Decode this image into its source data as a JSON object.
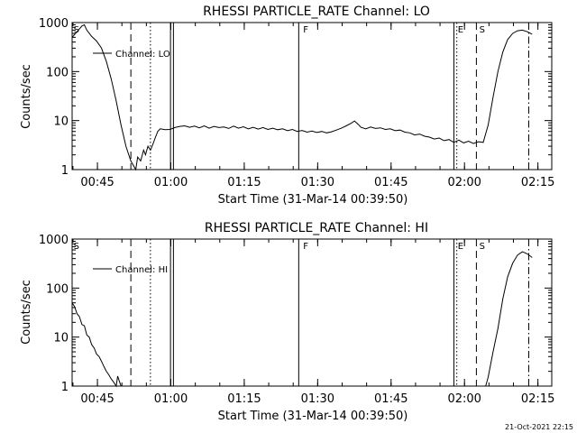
{
  "chart_data": [
    {
      "type": "line",
      "title": "RHESSI PARTICLE_RATE Channel: LO",
      "xlabel": "Start Time (31-Mar-14 00:39:50)",
      "ylabel": "Counts/sec",
      "y_scale": "log",
      "ylim": [
        1,
        1000
      ],
      "xlim_minutes": [
        0,
        98
      ],
      "x_tick_labels": [
        "00:45",
        "01:00",
        "01:15",
        "01:30",
        "01:45",
        "02:00",
        "02:15"
      ],
      "y_tick_labels": [
        "1",
        "10",
        "100",
        "1000"
      ],
      "legend_label": "Channel: LO",
      "event_labels": [
        {
          "label": "S",
          "minute": 0.3
        },
        {
          "label": "F",
          "minute": 47.2
        },
        {
          "label": "E",
          "minute": 78.8
        },
        {
          "label": "S",
          "minute": 83.2
        }
      ],
      "vertical_lines": [
        {
          "style": "dashed",
          "minute": 12.0
        },
        {
          "style": "dotted",
          "minute": 16.0
        },
        {
          "style": "solid",
          "minute": 20.1
        },
        {
          "style": "solid",
          "minute": 20.7
        },
        {
          "style": "solid",
          "minute": 46.3
        },
        {
          "style": "solid",
          "minute": 78.0
        },
        {
          "style": "dotted",
          "minute": 78.6
        },
        {
          "style": "dashed",
          "minute": 82.6
        },
        {
          "style": "dashdot",
          "minute": 93.3
        }
      ],
      "series": [
        {
          "label": "Channel: LO",
          "points": [
            [
              0,
              500
            ],
            [
              1,
              650
            ],
            [
              2,
              850
            ],
            [
              2.5,
              900
            ],
            [
              3,
              700
            ],
            [
              4,
              520
            ],
            [
              5,
              420
            ],
            [
              6,
              300
            ],
            [
              7,
              160
            ],
            [
              8,
              70
            ],
            [
              9,
              25
            ],
            [
              10,
              8
            ],
            [
              11,
              3
            ],
            [
              12,
              1.5
            ],
            [
              13,
              1
            ],
            [
              13.4,
              1.8
            ],
            [
              14,
              1.5
            ],
            [
              14.6,
              2.5
            ],
            [
              15,
              2
            ],
            [
              15.5,
              3
            ],
            [
              16,
              2.5
            ],
            [
              16.5,
              3.3
            ],
            [
              17,
              4.5
            ],
            [
              17.5,
              6
            ],
            [
              18,
              6.8
            ],
            [
              19,
              6.5
            ],
            [
              20,
              6.6
            ],
            [
              21,
              7.2
            ],
            [
              22,
              7.6
            ],
            [
              23,
              7.8
            ],
            [
              24,
              7.3
            ],
            [
              25,
              7.7
            ],
            [
              26,
              7.1
            ],
            [
              27,
              7.8
            ],
            [
              28,
              7.0
            ],
            [
              29,
              7.6
            ],
            [
              30,
              7.2
            ],
            [
              31,
              7.4
            ],
            [
              32,
              6.9
            ],
            [
              33,
              7.7
            ],
            [
              34,
              7.0
            ],
            [
              35,
              7.5
            ],
            [
              36,
              6.8
            ],
            [
              37,
              7.3
            ],
            [
              38,
              6.7
            ],
            [
              39,
              7.2
            ],
            [
              40,
              6.6
            ],
            [
              41,
              7.0
            ],
            [
              42,
              6.5
            ],
            [
              43,
              6.8
            ],
            [
              44,
              6.2
            ],
            [
              45,
              6.6
            ],
            [
              46,
              6.0
            ],
            [
              47,
              6.3
            ],
            [
              48,
              5.8
            ],
            [
              49,
              6.1
            ],
            [
              50,
              5.7
            ],
            [
              51,
              6.0
            ],
            [
              52,
              5.6
            ],
            [
              53,
              5.9
            ],
            [
              54,
              6.4
            ],
            [
              55,
              7.0
            ],
            [
              56,
              7.8
            ],
            [
              57,
              8.8
            ],
            [
              57.7,
              9.8
            ],
            [
              58.5,
              8.3
            ],
            [
              59,
              7.3
            ],
            [
              60,
              6.8
            ],
            [
              61,
              7.4
            ],
            [
              62,
              6.9
            ],
            [
              63,
              7.1
            ],
            [
              64,
              6.6
            ],
            [
              65,
              6.8
            ],
            [
              66,
              6.2
            ],
            [
              67,
              6.4
            ],
            [
              68,
              5.8
            ],
            [
              69,
              5.6
            ],
            [
              70,
              5.1
            ],
            [
              71,
              5.3
            ],
            [
              72,
              4.8
            ],
            [
              73,
              4.6
            ],
            [
              74,
              4.2
            ],
            [
              75,
              4.4
            ],
            [
              76,
              3.9
            ],
            [
              77,
              4.1
            ],
            [
              78,
              3.6
            ],
            [
              79,
              4.0
            ],
            [
              80,
              3.5
            ],
            [
              81,
              3.8
            ],
            [
              82,
              3.4
            ],
            [
              83,
              3.7
            ],
            [
              84,
              3.6
            ],
            [
              85,
              8
            ],
            [
              86,
              30
            ],
            [
              87,
              100
            ],
            [
              88,
              250
            ],
            [
              89,
              450
            ],
            [
              90,
              600
            ],
            [
              91,
              680
            ],
            [
              92,
              700
            ],
            [
              93,
              650
            ],
            [
              94,
              580
            ]
          ]
        }
      ]
    },
    {
      "type": "line",
      "title": "RHESSI PARTICLE_RATE Channel: HI",
      "xlabel": "Start Time (31-Mar-14 00:39:50)",
      "ylabel": "Counts/sec",
      "y_scale": "log",
      "ylim": [
        1,
        1000
      ],
      "xlim_minutes": [
        0,
        98
      ],
      "x_tick_labels": [
        "00:45",
        "01:00",
        "01:15",
        "01:30",
        "01:45",
        "02:00",
        "02:15"
      ],
      "y_tick_labels": [
        "1",
        "10",
        "100",
        "1000"
      ],
      "legend_label": "Channel: HI",
      "event_labels": [
        {
          "label": "S",
          "minute": 0.3
        },
        {
          "label": "F",
          "minute": 47.2
        },
        {
          "label": "E",
          "minute": 78.8
        },
        {
          "label": "S",
          "minute": 83.2
        }
      ],
      "vertical_lines": [
        {
          "style": "dashed",
          "minute": 12.0
        },
        {
          "style": "dotted",
          "minute": 16.0
        },
        {
          "style": "solid",
          "minute": 20.1
        },
        {
          "style": "solid",
          "minute": 20.7
        },
        {
          "style": "solid",
          "minute": 46.3
        },
        {
          "style": "solid",
          "minute": 78.0
        },
        {
          "style": "dotted",
          "minute": 78.6
        },
        {
          "style": "dashed",
          "minute": 82.6
        },
        {
          "style": "dashdot",
          "minute": 93.3
        }
      ],
      "series": [
        {
          "label": "Channel: HI",
          "points": [
            [
              0,
              50
            ],
            [
              0.5,
              42
            ],
            [
              1,
              30
            ],
            [
              1.5,
              26
            ],
            [
              2,
              18
            ],
            [
              2.5,
              17
            ],
            [
              3,
              11
            ],
            [
              3.5,
              10
            ],
            [
              4,
              7
            ],
            [
              4.5,
              6
            ],
            [
              5,
              4.5
            ],
            [
              5.5,
              4
            ],
            [
              6,
              3.2
            ],
            [
              6.5,
              2.5
            ],
            [
              7,
              2
            ],
            [
              7.5,
              1.7
            ],
            [
              8,
              1.4
            ],
            [
              8.5,
              1.2
            ],
            [
              9,
              1.0
            ],
            [
              9.3,
              1.6
            ],
            [
              9.6,
              1.3
            ],
            [
              10,
              1.0
            ],
            [
              10.3,
              0.8
            ],
            null,
            [
              84.5,
              0.8
            ],
            [
              85,
              1.5
            ],
            [
              86,
              5
            ],
            [
              87,
              15
            ],
            [
              88,
              60
            ],
            [
              89,
              170
            ],
            [
              90,
              320
            ],
            [
              91,
              470
            ],
            [
              92,
              550
            ],
            [
              93,
              500
            ],
            [
              94,
              420
            ]
          ]
        }
      ]
    }
  ],
  "footer": {
    "timestamp": "21-Oct-2021 22:15"
  }
}
